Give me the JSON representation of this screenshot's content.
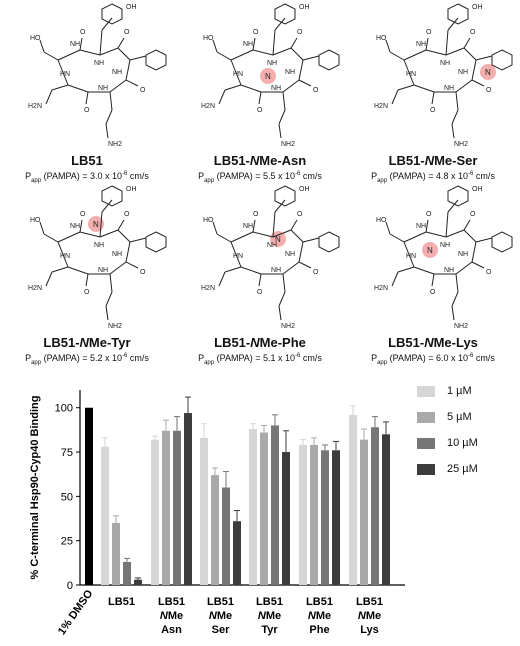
{
  "compounds": [
    {
      "name": "LB51",
      "name_prefix": "LB51",
      "name_italic": "",
      "name_suffix": "",
      "papp_p": "P",
      "papp_sub": "app",
      "papp_text": " (PAMPA) = 3.0 x 10",
      "papp_exp": "-6",
      "papp_unit": " cm/s",
      "highlight": ""
    },
    {
      "name": "LB51-NMe-Asn",
      "name_prefix": "LB51-",
      "name_italic": "N",
      "name_suffix": "Me-Asn",
      "papp_p": "P",
      "papp_sub": "app",
      "papp_text": " (PAMPA) = 5.5 x 10",
      "papp_exp": "-6",
      "papp_unit": " cm/s",
      "highlight": "Asn"
    },
    {
      "name": "LB51-NMe-Ser",
      "name_prefix": "LB51-",
      "name_italic": "N",
      "name_suffix": "Me-Ser",
      "papp_p": "P",
      "papp_sub": "app",
      "papp_text": " (PAMPA) = 4.8 x 10",
      "papp_exp": "-6",
      "papp_unit": " cm/s",
      "highlight": "Ser"
    },
    {
      "name": "LB51-NMe-Tyr",
      "name_prefix": "LB51-",
      "name_italic": "N",
      "name_suffix": "Me-Tyr",
      "papp_p": "P",
      "papp_sub": "app",
      "papp_text": " (PAMPA) = 5.2 x 10",
      "papp_exp": "-6",
      "papp_unit": " cm/s",
      "highlight": "Tyr"
    },
    {
      "name": "LB51-NMe-Phe",
      "name_prefix": "LB51-",
      "name_italic": "N",
      "name_suffix": "Me-Phe",
      "papp_p": "P",
      "papp_sub": "app",
      "papp_text": " (PAMPA) = 5.1 x 10",
      "papp_exp": "-6",
      "papp_unit": " cm/s",
      "highlight": "Phe"
    },
    {
      "name": "LB51-NMe-Lys",
      "name_prefix": "LB51-",
      "name_italic": "N",
      "name_suffix": "Me-Lys",
      "papp_p": "P",
      "papp_sub": "app",
      "papp_text": " (PAMPA) = 6.0 x 10",
      "papp_exp": "-6",
      "papp_unit": " cm/s",
      "highlight": "Lys"
    }
  ],
  "structure_labels": {
    "oh": "OH",
    "ho": "HO",
    "nh": "NH",
    "hn": "HN",
    "o": "O",
    "h2n": "H2N",
    "nh2": "NH2",
    "n": "N"
  },
  "highlight_color": "#f2a0a0",
  "chart_data": {
    "type": "bar",
    "ylabel": "% C-terminal Hsp90-Cyp40 Binding",
    "ylim": [
      0,
      110
    ],
    "yticks": [
      0,
      25,
      50,
      75,
      100
    ],
    "control": {
      "label": "1% DMSO",
      "value": 100,
      "color": "#000000"
    },
    "groups": [
      {
        "label_lines": [
          "LB51"
        ],
        "italic_line": -1
      },
      {
        "label_lines": [
          "LB51",
          "NMe",
          "Asn"
        ],
        "italic_line": 1
      },
      {
        "label_lines": [
          "LB51",
          "NMe",
          "Ser"
        ],
        "italic_line": 1
      },
      {
        "label_lines": [
          "LB51",
          "NMe",
          "Tyr"
        ],
        "italic_line": 1
      },
      {
        "label_lines": [
          "LB51",
          "NMe",
          "Phe"
        ],
        "italic_line": 1
      },
      {
        "label_lines": [
          "LB51",
          "NMe",
          "Lys"
        ],
        "italic_line": 1
      }
    ],
    "series": [
      {
        "name": "1 µM",
        "color": "#d6d6d6",
        "values": [
          78,
          82,
          83,
          88,
          79,
          96
        ],
        "errors": [
          5,
          2,
          8,
          3,
          3,
          5
        ]
      },
      {
        "name": "5 µM",
        "color": "#a9a9a9",
        "values": [
          35,
          87,
          62,
          86,
          79,
          82
        ],
        "errors": [
          4,
          6,
          4,
          4,
          4,
          6
        ]
      },
      {
        "name": "10 µM",
        "color": "#767676",
        "values": [
          13,
          87,
          55,
          90,
          76,
          89
        ],
        "errors": [
          2,
          8,
          9,
          6,
          3,
          6
        ]
      },
      {
        "name": "25 µM",
        "color": "#3c3c3c",
        "values": [
          3,
          97,
          36,
          75,
          76,
          85
        ],
        "errors": [
          1,
          9,
          6,
          12,
          5,
          7
        ]
      }
    ],
    "legend_position": "top-right",
    "grid": false
  }
}
